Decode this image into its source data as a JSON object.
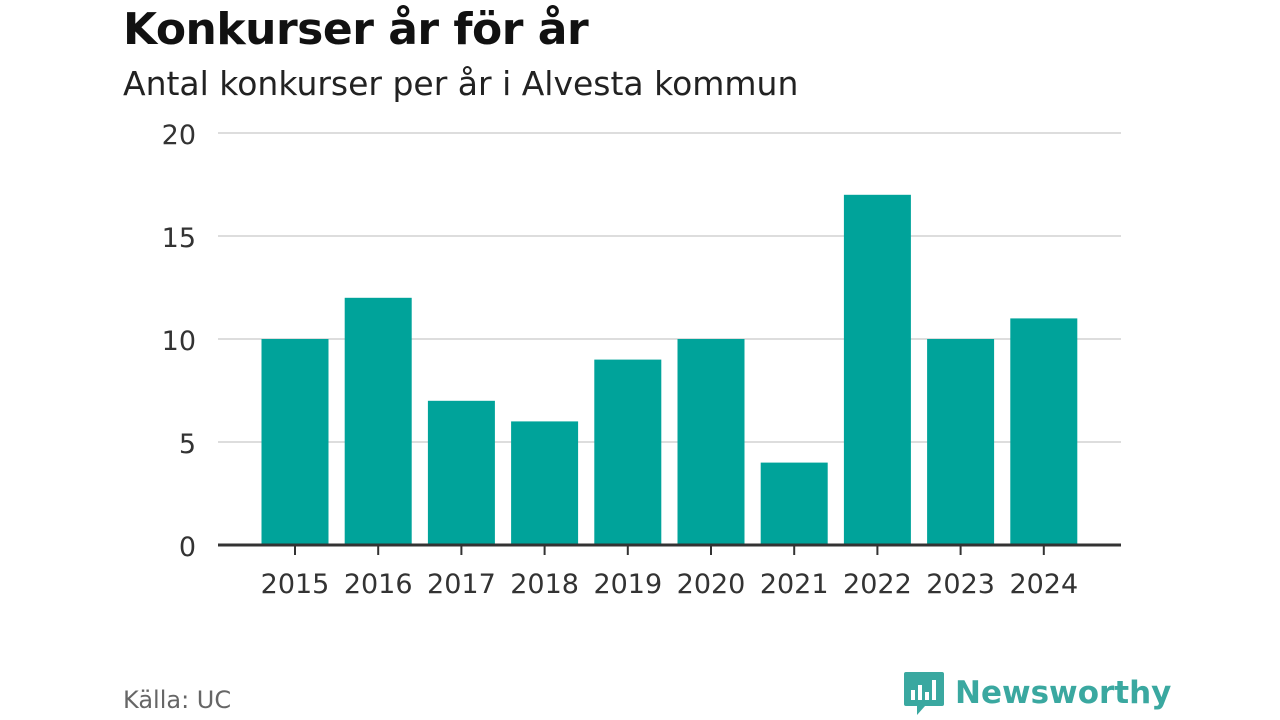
{
  "header": {
    "title": "Konkurser år för år",
    "subtitle": "Antal konkurser per år i Alvesta kommun"
  },
  "footer": {
    "source": "Källa: UC",
    "brand": "Newsworthy",
    "brand_icon": "bar-chart-speech-bubble-icon"
  },
  "colors": {
    "bar": "#00a39a",
    "grid": "#dddddd",
    "axis": "#333333",
    "brand": "#3aa8a0"
  },
  "chart_data": {
    "type": "bar",
    "title": "Konkurser år för år",
    "subtitle": "Antal konkurser per år i Alvesta kommun",
    "xlabel": "",
    "ylabel": "",
    "categories": [
      "2015",
      "2016",
      "2017",
      "2018",
      "2019",
      "2020",
      "2021",
      "2022",
      "2023",
      "2024"
    ],
    "values": [
      10,
      12,
      7,
      6,
      9,
      10,
      4,
      17,
      10,
      11
    ],
    "ylim": [
      0,
      20
    ],
    "yticks": [
      0,
      5,
      10,
      15,
      20
    ],
    "grid": true,
    "legend": "none"
  }
}
